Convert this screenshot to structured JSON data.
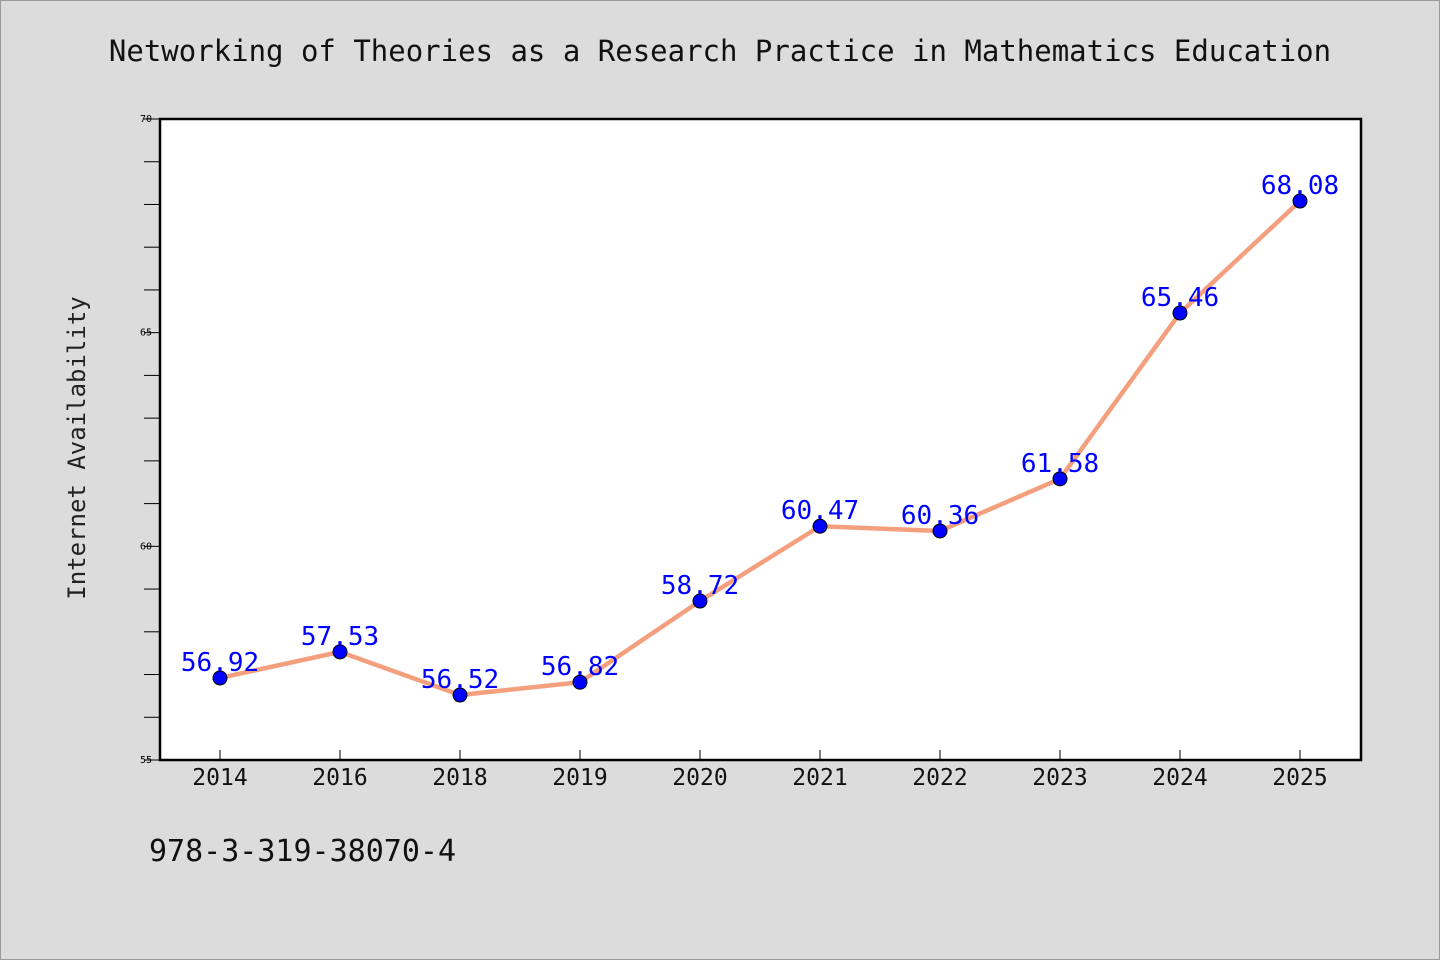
{
  "chart_data": {
    "type": "line",
    "title": "Networking of Theories as a Research Practice in Mathematics Education",
    "xlabel": "",
    "ylabel": "Internet Availability",
    "categories": [
      "2014",
      "2016",
      "2018",
      "2019",
      "2020",
      "2021",
      "2022",
      "2023",
      "2024",
      "2025"
    ],
    "values": [
      56.92,
      57.53,
      56.52,
      56.82,
      58.72,
      60.47,
      60.36,
      61.58,
      65.46,
      68.08
    ],
    "value_labels": [
      "56.92",
      "57.53",
      "56.52",
      "56.82",
      "58.72",
      "60.47",
      "60.36",
      "61.58",
      "65.46",
      "68.08"
    ],
    "ylim": [
      55,
      70
    ],
    "yticks": [
      "55",
      "60",
      "65",
      "70"
    ],
    "grid": false,
    "line_color": "#f4a07e",
    "marker_color": "#0000ff",
    "label_color": "#0000ff"
  },
  "footnote": "978-3-319-38070-4"
}
